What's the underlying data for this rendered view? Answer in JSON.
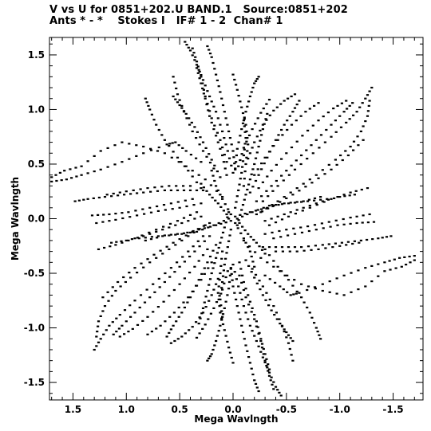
{
  "chart_data": {
    "type": "scatter",
    "title_line1": "V vs U for 0851+202.U BAND.1   Source:0851+202",
    "title_line2": "Ants * - *    Stokes I   IF# 1 - 2  Chan# 1",
    "xlabel": "Mega Wavlngth",
    "ylabel": "Mega Wavlngth",
    "xlim": [
      1.72,
      -1.78
    ],
    "ylim": [
      -1.66,
      1.66
    ],
    "x_ticks": [
      {
        "v": 1.5,
        "label": "1.5"
      },
      {
        "v": 1.0,
        "label": "1.0"
      },
      {
        "v": 0.5,
        "label": "0.5"
      },
      {
        "v": 0.0,
        "label": "0.0"
      },
      {
        "v": -0.5,
        "label": "-0.5"
      },
      {
        "v": -1.0,
        "label": "-1.0"
      },
      {
        "v": -1.5,
        "label": "-1.5"
      }
    ],
    "y_ticks": [
      {
        "v": 1.5,
        "label": "1.5"
      },
      {
        "v": 1.0,
        "label": "1.0"
      },
      {
        "v": 0.5,
        "label": "0.5"
      },
      {
        "v": 0.0,
        "label": "0.0"
      },
      {
        "v": -0.5,
        "label": "-0.5"
      },
      {
        "v": -1.0,
        "label": "-1.0"
      },
      {
        "v": -1.5,
        "label": "-1.5"
      }
    ],
    "baselines": [
      {
        "points": [
          [
            -0.05,
            0.48
          ],
          [
            -0.1,
            0.65
          ],
          [
            -0.18,
            0.82
          ],
          [
            -0.26,
            0.97
          ],
          [
            -0.34,
            1.09
          ]
        ]
      },
      {
        "points": [
          [
            0.0,
            0.42
          ],
          [
            0.05,
            0.62
          ],
          [
            0.1,
            0.8
          ],
          [
            0.16,
            0.98
          ],
          [
            0.22,
            1.12
          ],
          [
            0.28,
            1.27
          ],
          [
            0.34,
            1.41
          ],
          [
            0.4,
            1.54
          ],
          [
            0.45,
            1.62
          ]
        ]
      },
      {
        "points": [
          [
            -0.14,
            0.55
          ],
          [
            -0.2,
            0.7
          ],
          [
            -0.28,
            0.86
          ],
          [
            -0.38,
            0.99
          ],
          [
            -0.48,
            1.08
          ],
          [
            -0.58,
            1.14
          ]
        ]
      },
      {
        "points": [
          [
            -0.2,
            0.4
          ],
          [
            -0.3,
            0.56
          ],
          [
            -0.42,
            0.72
          ],
          [
            -0.55,
            0.86
          ],
          [
            -0.68,
            0.98
          ],
          [
            -0.8,
            1.06
          ]
        ]
      },
      {
        "points": [
          [
            -0.24,
            0.28
          ],
          [
            -0.36,
            0.44
          ],
          [
            -0.5,
            0.6
          ],
          [
            -0.65,
            0.76
          ],
          [
            -0.8,
            0.9
          ],
          [
            -0.94,
            1.01
          ],
          [
            -1.06,
            1.08
          ]
        ]
      },
      {
        "points": [
          [
            -0.28,
            0.16
          ],
          [
            -0.42,
            0.3
          ],
          [
            -0.58,
            0.45
          ],
          [
            -0.75,
            0.6
          ],
          [
            -0.92,
            0.75
          ],
          [
            -1.06,
            0.88
          ],
          [
            -1.16,
            0.98
          ],
          [
            -1.24,
            1.1
          ],
          [
            -1.3,
            1.2
          ]
        ]
      },
      {
        "points": [
          [
            -0.22,
            0.04
          ],
          [
            -0.38,
            0.12
          ],
          [
            -0.56,
            0.22
          ],
          [
            -0.74,
            0.33
          ],
          [
            -0.92,
            0.45
          ],
          [
            -1.08,
            0.58
          ],
          [
            -1.22,
            0.72
          ]
        ]
      },
      {
        "points": [
          [
            -0.34,
            -0.06
          ],
          [
            -0.52,
            0.02
          ],
          [
            -0.72,
            0.1
          ],
          [
            -0.92,
            0.18
          ],
          [
            -1.1,
            0.24
          ],
          [
            -1.26,
            0.28
          ]
        ]
      },
      {
        "points": [
          [
            -0.38,
            -0.18
          ],
          [
            -0.58,
            -0.14
          ],
          [
            -0.78,
            -0.1
          ],
          [
            -0.98,
            -0.06
          ],
          [
            -1.16,
            -0.04
          ],
          [
            -1.32,
            -0.03
          ]
        ]
      },
      {
        "points": [
          [
            -0.4,
            -0.3
          ],
          [
            -0.6,
            -0.3
          ],
          [
            -0.8,
            -0.28
          ],
          [
            -1.0,
            -0.25
          ],
          [
            -1.18,
            -0.22
          ]
        ]
      },
      {
        "points": [
          [
            -0.3,
            -0.52
          ],
          [
            -0.44,
            -0.62
          ],
          [
            -0.54,
            -0.7
          ],
          [
            -0.62,
            -0.68
          ],
          [
            -0.84,
            -0.6
          ],
          [
            -1.04,
            -0.52
          ],
          [
            -1.24,
            -0.45
          ],
          [
            -1.42,
            -0.4
          ],
          [
            -1.56,
            -0.36
          ],
          [
            -1.7,
            -0.34
          ]
        ]
      },
      {
        "points": [
          [
            -0.3,
            -0.28
          ],
          [
            -0.42,
            -0.44
          ],
          [
            -0.52,
            -0.56
          ],
          [
            -0.64,
            -0.72
          ],
          [
            -0.72,
            -0.86
          ],
          [
            -0.78,
            -1.0
          ],
          [
            -0.82,
            -1.1
          ]
        ]
      },
      {
        "points": [
          [
            -0.18,
            -0.46
          ],
          [
            -0.28,
            -0.62
          ],
          [
            -0.38,
            -0.8
          ],
          [
            -0.46,
            -0.98
          ],
          [
            -0.52,
            -1.14
          ],
          [
            -0.56,
            -1.3
          ]
        ]
      },
      {
        "points": [
          [
            -0.06,
            -0.52
          ],
          [
            -0.12,
            -0.72
          ],
          [
            -0.2,
            -0.92
          ],
          [
            -0.26,
            -1.12
          ],
          [
            -0.3,
            -1.3
          ],
          [
            -0.34,
            -1.44
          ],
          [
            -0.38,
            -1.56
          ]
        ]
      },
      {
        "points": [
          [
            0.02,
            -0.45
          ],
          [
            0.0,
            -0.62
          ],
          [
            -0.04,
            -0.8
          ],
          [
            -0.08,
            -0.98
          ],
          [
            -0.12,
            -1.16
          ],
          [
            -0.16,
            -1.32
          ],
          [
            -0.2,
            -1.48
          ],
          [
            -0.24,
            -1.58
          ]
        ]
      },
      {
        "points": [
          [
            0.1,
            -0.3
          ],
          [
            0.12,
            -0.5
          ],
          [
            0.14,
            -0.68
          ],
          [
            0.12,
            -0.86
          ],
          [
            0.08,
            -1.02
          ],
          [
            0.04,
            -1.18
          ],
          [
            0.0,
            -1.32
          ]
        ]
      },
      {
        "points": [
          [
            0.16,
            -0.24
          ],
          [
            0.24,
            -0.4
          ],
          [
            0.32,
            -0.56
          ],
          [
            0.4,
            -0.72
          ],
          [
            0.48,
            -0.86
          ],
          [
            0.56,
            -0.98
          ],
          [
            0.62,
            -1.08
          ]
        ]
      },
      {
        "points": [
          [
            0.22,
            -0.16
          ],
          [
            0.36,
            -0.3
          ],
          [
            0.5,
            -0.44
          ],
          [
            0.64,
            -0.58
          ],
          [
            0.78,
            -0.72
          ],
          [
            0.92,
            -0.86
          ],
          [
            1.04,
            -0.98
          ],
          [
            1.12,
            -1.06
          ]
        ]
      },
      {
        "points": [
          [
            0.26,
            -0.06
          ],
          [
            0.42,
            -0.16
          ],
          [
            0.6,
            -0.28
          ],
          [
            0.78,
            -0.4
          ],
          [
            0.96,
            -0.54
          ],
          [
            1.1,
            -0.66
          ],
          [
            1.2,
            -0.8
          ],
          [
            1.26,
            -0.94
          ],
          [
            1.28,
            -1.08
          ]
        ]
      },
      {
        "points": [
          [
            0.3,
            0.02
          ],
          [
            0.48,
            -0.04
          ],
          [
            0.66,
            -0.1
          ],
          [
            0.84,
            -0.16
          ],
          [
            1.0,
            -0.2
          ],
          [
            1.14,
            -0.22
          ]
        ]
      },
      {
        "points": [
          [
            0.3,
            0.14
          ],
          [
            0.5,
            0.1
          ],
          [
            0.7,
            0.07
          ],
          [
            0.9,
            0.03
          ],
          [
            1.1,
            -0.01
          ],
          [
            1.28,
            -0.04
          ]
        ]
      },
      {
        "points": [
          [
            0.28,
            0.26
          ],
          [
            0.46,
            0.26
          ],
          [
            0.64,
            0.26
          ],
          [
            0.84,
            0.24
          ],
          [
            1.02,
            0.22
          ],
          [
            1.2,
            0.2
          ],
          [
            1.36,
            0.18
          ],
          [
            1.48,
            0.16
          ]
        ]
      },
      {
        "points": [
          [
            0.1,
            0.2
          ],
          [
            0.26,
            0.36
          ],
          [
            0.44,
            0.48
          ],
          [
            0.64,
            0.6
          ],
          [
            0.84,
            0.66
          ],
          [
            1.04,
            0.7
          ],
          [
            1.24,
            0.62
          ],
          [
            1.42,
            0.48
          ],
          [
            1.58,
            0.44
          ],
          [
            1.7,
            0.38
          ]
        ]
      },
      {
        "points": [
          [
            0.12,
            0.38
          ],
          [
            0.2,
            0.54
          ],
          [
            0.28,
            0.7
          ],
          [
            0.36,
            0.84
          ],
          [
            0.44,
            0.96
          ],
          [
            0.5,
            1.04
          ],
          [
            0.56,
            1.12
          ]
        ]
      },
      {
        "points": [
          [
            0.06,
            0.4
          ],
          [
            0.1,
            0.58
          ],
          [
            0.16,
            0.76
          ],
          [
            0.22,
            0.94
          ],
          [
            0.26,
            1.1
          ],
          [
            0.3,
            1.24
          ],
          [
            0.34,
            1.38
          ]
        ]
      },
      {
        "points": [
          [
            -0.02,
            0.46
          ],
          [
            -0.04,
            0.64
          ],
          [
            -0.08,
            0.82
          ],
          [
            -0.12,
            0.98
          ],
          [
            -0.16,
            1.12
          ],
          [
            -0.2,
            1.24
          ],
          [
            -0.24,
            1.3
          ]
        ]
      },
      {
        "points": [
          [
            -0.04,
            -0.06
          ],
          [
            -0.08,
            0.08
          ],
          [
            -0.12,
            0.22
          ],
          [
            -0.16,
            0.36
          ],
          [
            -0.2,
            0.5
          ],
          [
            -0.24,
            0.66
          ],
          [
            -0.28,
            0.82
          ],
          [
            -0.32,
            0.96
          ]
        ]
      },
      {
        "points": [
          [
            0.02,
            -0.1
          ],
          [
            0.05,
            -0.26
          ],
          [
            0.08,
            -0.42
          ],
          [
            0.1,
            -0.58
          ],
          [
            0.12,
            -0.74
          ],
          [
            0.1,
            -0.9
          ]
        ]
      },
      {
        "points": [
          [
            0.04,
            0.0
          ],
          [
            0.18,
            -0.06
          ],
          [
            0.34,
            -0.12
          ],
          [
            0.52,
            -0.14
          ],
          [
            0.7,
            -0.16
          ],
          [
            0.88,
            -0.18
          ]
        ]
      },
      {
        "points": [
          [
            -0.02,
            0.02
          ],
          [
            -0.16,
            0.06
          ],
          [
            -0.32,
            0.1
          ],
          [
            -0.48,
            0.14
          ],
          [
            -0.66,
            0.16
          ],
          [
            -0.82,
            0.2
          ]
        ]
      },
      {
        "points": [
          [
            0.02,
            0.04
          ],
          [
            0.1,
            0.18
          ],
          [
            0.16,
            0.3
          ],
          [
            0.2,
            0.44
          ]
        ]
      },
      {
        "points": [
          [
            -0.06,
            -0.04
          ],
          [
            -0.14,
            -0.14
          ],
          [
            -0.22,
            -0.22
          ],
          [
            -0.3,
            -0.32
          ]
        ]
      }
    ]
  }
}
